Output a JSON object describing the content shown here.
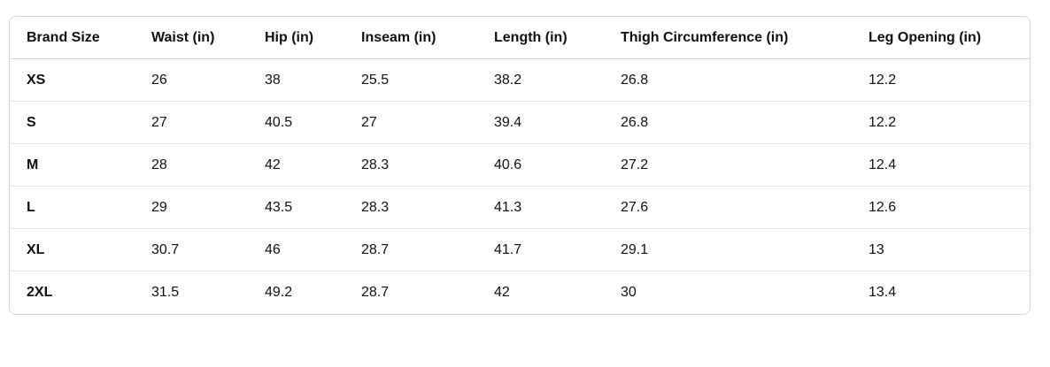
{
  "size_chart": {
    "headers": [
      "Brand Size",
      "Waist (in)",
      "Hip (in)",
      "Inseam (in)",
      "Length (in)",
      "Thigh Circumference (in)",
      "Leg Opening (in)"
    ],
    "rows": [
      [
        "XS",
        "26",
        "38",
        "25.5",
        "38.2",
        "26.8",
        "12.2"
      ],
      [
        "S",
        "27",
        "40.5",
        "27",
        "39.4",
        "26.8",
        "12.2"
      ],
      [
        "M",
        "28",
        "42",
        "28.3",
        "40.6",
        "27.2",
        "12.4"
      ],
      [
        "L",
        "29",
        "43.5",
        "28.3",
        "41.3",
        "27.6",
        "12.6"
      ],
      [
        "XL",
        "30.7",
        "46",
        "28.7",
        "41.7",
        "29.1",
        "13"
      ],
      [
        "2XL",
        "31.5",
        "49.2",
        "28.7",
        "42",
        "30",
        "13.4"
      ]
    ],
    "colors": {
      "outer_border": "#d5d9d9",
      "row_divider": "#e7e7e7",
      "text": "#0f1111",
      "background": "#ffffff"
    }
  },
  "chart_data": {
    "type": "table",
    "columns": [
      "Brand Size",
      "Waist (in)",
      "Hip (in)",
      "Inseam (in)",
      "Length (in)",
      "Thigh Circumference (in)",
      "Leg Opening (in)"
    ],
    "rows": [
      [
        "XS",
        "26",
        "38",
        "25.5",
        "38.2",
        "26.8",
        "12.2"
      ],
      [
        "S",
        "27",
        "40.5",
        "27",
        "39.4",
        "26.8",
        "12.2"
      ],
      [
        "M",
        "28",
        "42",
        "28.3",
        "40.6",
        "27.2",
        "12.4"
      ],
      [
        "L",
        "29",
        "43.5",
        "28.3",
        "41.3",
        "27.6",
        "12.6"
      ],
      [
        "XL",
        "30.7",
        "46",
        "28.7",
        "41.7",
        "29.1",
        "13"
      ],
      [
        "2XL",
        "31.5",
        "49.2",
        "28.7",
        "42",
        "30",
        "13.4"
      ]
    ]
  }
}
